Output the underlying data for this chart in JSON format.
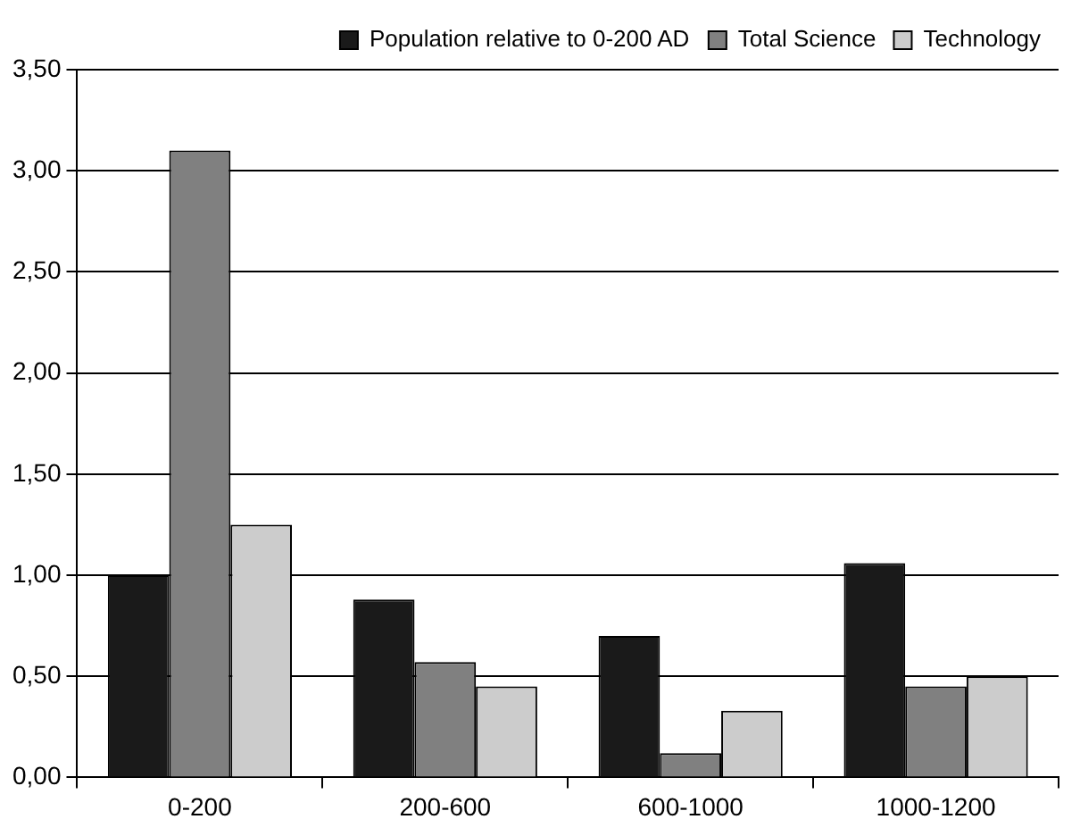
{
  "chart_data": {
    "type": "bar",
    "categories": [
      "0-200",
      "200-600",
      "600-1000",
      "1000-1200"
    ],
    "series": [
      {
        "name": "Population relative to 0-200 AD",
        "color": "#1a1a1a",
        "values": [
          1.0,
          0.88,
          0.7,
          1.06
        ]
      },
      {
        "name": "Total Science",
        "color": "#808080",
        "values": [
          3.1,
          0.57,
          0.12,
          0.45
        ]
      },
      {
        "name": "Technology",
        "color": "#cccccc",
        "values": [
          1.25,
          0.45,
          0.33,
          0.5
        ]
      }
    ],
    "ylim": [
      0,
      3.5
    ],
    "yticks": [
      {
        "value": 0,
        "label": "0,00"
      },
      {
        "value": 0.5,
        "label": "0,50"
      },
      {
        "value": 1,
        "label": "1,00"
      },
      {
        "value": 1.5,
        "label": "1,50"
      },
      {
        "value": 2,
        "label": "2,00"
      },
      {
        "value": 2.5,
        "label": "2,50"
      },
      {
        "value": 3,
        "label": "3,00"
      },
      {
        "value": 3.5,
        "label": "3,50"
      }
    ],
    "grid": "y",
    "legend": "top right"
  }
}
